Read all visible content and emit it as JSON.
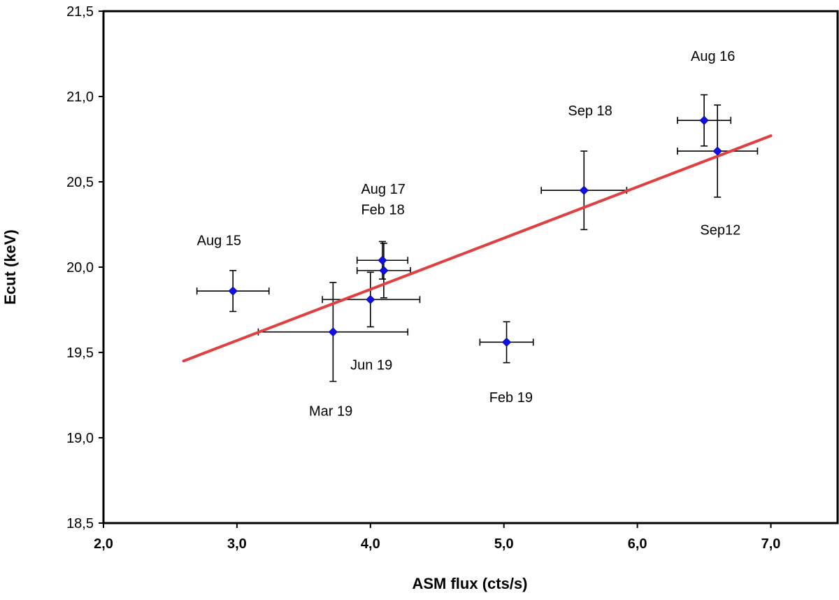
{
  "chart_data": {
    "type": "scatter",
    "title": "",
    "xlabel": "ASM flux  (cts/s)",
    "ylabel": "Ecut (keV)",
    "xlim": [
      2.0,
      7.5
    ],
    "ylim": [
      18.5,
      21.5
    ],
    "grid": false,
    "x_ticks": [
      2.0,
      3.0,
      4.0,
      5.0,
      6.0,
      7.0
    ],
    "x_tick_labels": [
      "2,0",
      "3,0",
      "4,0",
      "5,0",
      "6,0",
      "7,0"
    ],
    "y_ticks": [
      18.5,
      19.0,
      19.5,
      20.0,
      20.5,
      21.0,
      21.5
    ],
    "y_tick_labels": [
      "18,5",
      "19,0",
      "19,5",
      "20,0",
      "20,5",
      "21,0",
      "21,5"
    ],
    "marker_color": "#1010e8",
    "errorbar_color": "#000000",
    "points": [
      {
        "x": 2.97,
        "y": 19.86,
        "xerr": 0.27,
        "yerr": 0.12
      },
      {
        "x": 3.72,
        "y": 19.62,
        "xerr_low": 0.56,
        "xerr_high": 0.56,
        "yerr": 0.29
      },
      {
        "x": 4.0,
        "y": 19.81,
        "xerr_low": 0.36,
        "xerr_high": 0.37,
        "yerr_low": 0.16,
        "yerr_high": 0.16
      },
      {
        "x": 4.09,
        "y": 20.04,
        "xerr": 0.19,
        "yerr": 0.11
      },
      {
        "x": 4.1,
        "y": 19.98,
        "xerr": 0.2,
        "yerr": 0.16
      },
      {
        "x": 5.02,
        "y": 19.56,
        "xerr": 0.2,
        "yerr": 0.12
      },
      {
        "x": 5.6,
        "y": 20.45,
        "xerr": 0.32,
        "yerr": 0.23
      },
      {
        "x": 6.5,
        "y": 20.86,
        "xerr": 0.2,
        "yerr": 0.15
      },
      {
        "x": 6.6,
        "y": 20.68,
        "xerr": 0.3,
        "yerr": 0.27
      }
    ],
    "fit_line": {
      "color": "#e04040",
      "x": [
        2.6,
        7.0
      ],
      "y": [
        19.45,
        20.77
      ]
    },
    "annotations": [
      {
        "text": "Aug 16",
        "x": 6.4,
        "y": 21.21
      },
      {
        "text": "Sep 18",
        "x": 5.48,
        "y": 20.89
      },
      {
        "text": "Aug 17",
        "x": 3.93,
        "y": 20.43
      },
      {
        "text": "Feb 18",
        "x": 3.93,
        "y": 20.31
      },
      {
        "text": "Aug 15",
        "x": 2.7,
        "y": 20.13
      },
      {
        "text": "Sep12",
        "x": 6.47,
        "y": 20.19
      },
      {
        "text": "Jun 19",
        "x": 3.85,
        "y": 19.4
      },
      {
        "text": "Mar 19",
        "x": 3.54,
        "y": 19.13
      },
      {
        "text": "Feb 19",
        "x": 4.89,
        "y": 19.21
      }
    ]
  }
}
